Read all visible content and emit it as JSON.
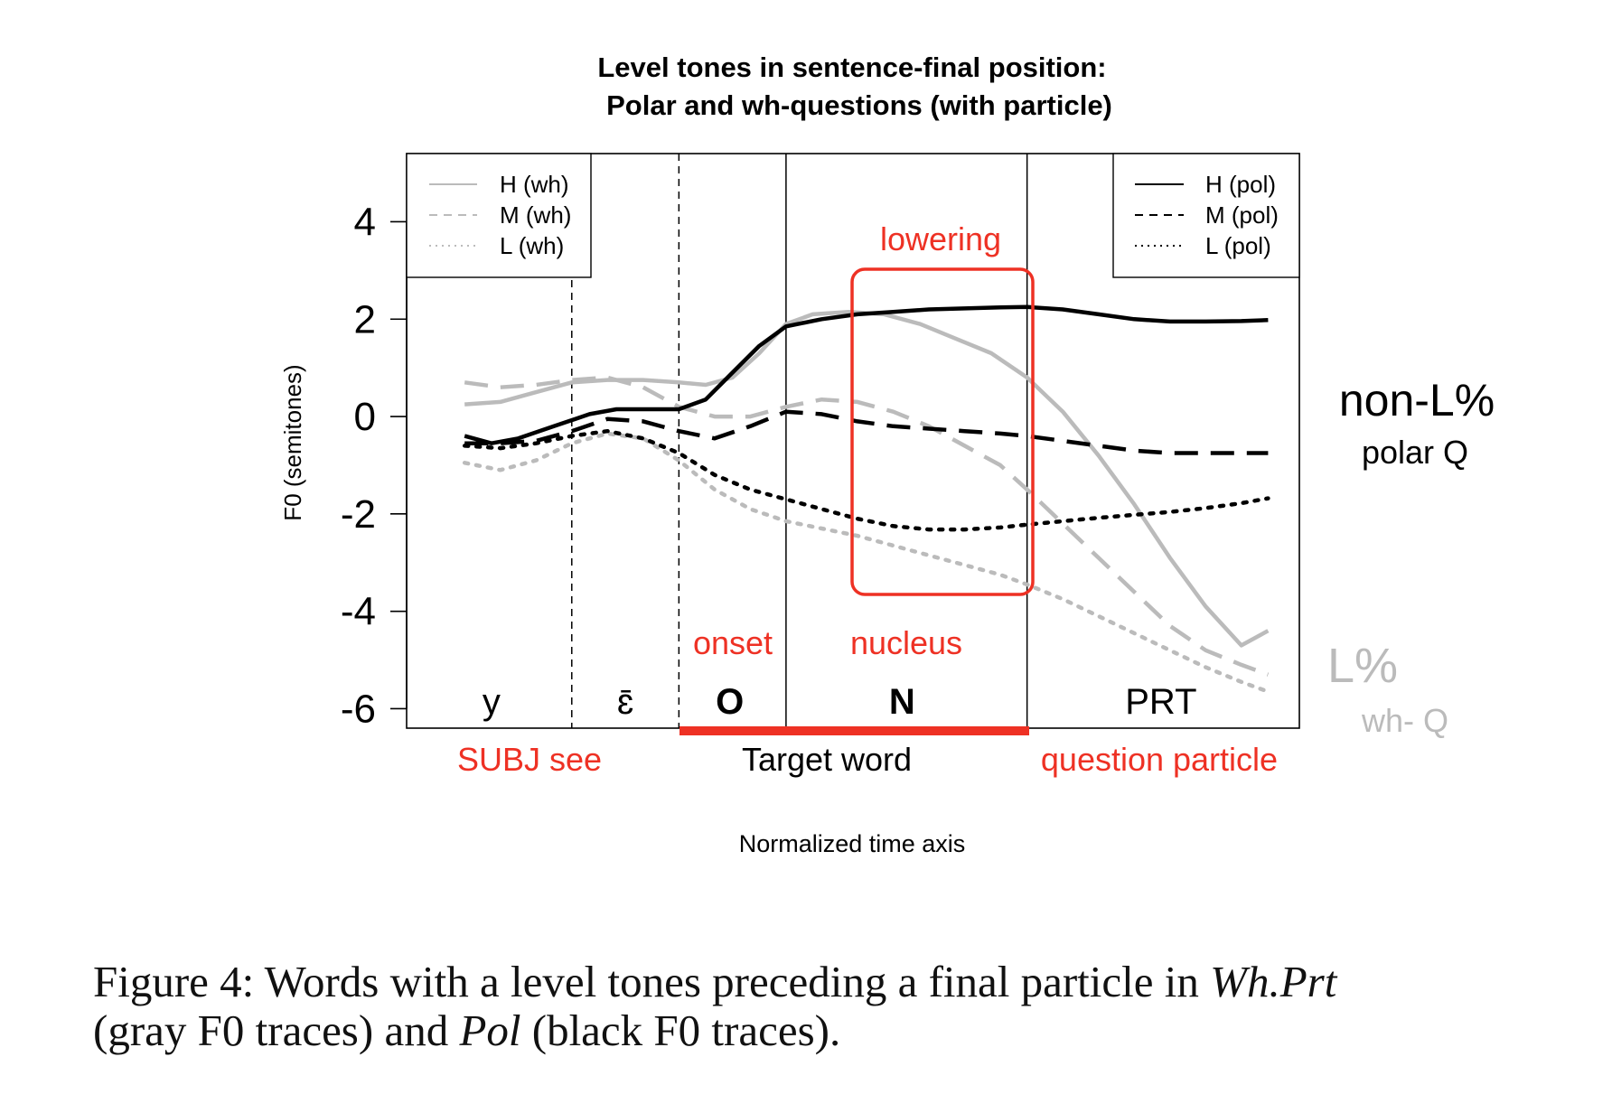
{
  "chart_data": {
    "type": "line",
    "title": "Level tones in sentence-final position:",
    "subtitle": "Polar and wh-questions (with particle)",
    "xlabel": "Normalized time axis",
    "ylabel": "F0 (semitones)",
    "xlim": [
      0,
      1
    ],
    "ylim": [
      -6.4,
      5.4
    ],
    "yticks": [
      4,
      2,
      0,
      -2,
      -4,
      -6
    ],
    "grid": false,
    "legend": [
      {
        "position": "top-left",
        "entries": [
          {
            "label": "H (wh)",
            "color": "#bbbbbb",
            "dash": "solid"
          },
          {
            "label": "M (wh)",
            "color": "#bbbbbb",
            "dash": "dashed"
          },
          {
            "label": "L (wh)",
            "color": "#bbbbbb",
            "dash": "dotted"
          }
        ]
      },
      {
        "position": "top-right",
        "entries": [
          {
            "label": "H (pol)",
            "color": "#000000",
            "dash": "solid"
          },
          {
            "label": "M (pol)",
            "color": "#000000",
            "dash": "dashed"
          },
          {
            "label": "L (pol)",
            "color": "#000000",
            "dash": "dotted"
          }
        ]
      }
    ],
    "segment_boundaries": [
      {
        "x": 0.185,
        "style": "dashed"
      },
      {
        "x": 0.305,
        "style": "dashed"
      },
      {
        "x": 0.425,
        "style": "solid"
      },
      {
        "x": 0.695,
        "style": "solid"
      }
    ],
    "segment_labels": [
      {
        "text": "y",
        "x": 0.095,
        "weight": "normal"
      },
      {
        "text": "ɛ̄",
        "x": 0.245,
        "weight": "normal"
      },
      {
        "text": "O",
        "x": 0.362,
        "weight": "bold"
      },
      {
        "text": "N",
        "x": 0.555,
        "weight": "bold"
      },
      {
        "text": "PRT",
        "x": 0.845,
        "weight": "normal"
      }
    ],
    "series": [
      {
        "name": "H (wh)",
        "color": "#bbbbbb",
        "dash": "solid",
        "x": [
          0.065,
          0.105,
          0.145,
          0.185,
          0.225,
          0.265,
          0.305,
          0.335,
          0.365,
          0.395,
          0.425,
          0.455,
          0.495,
          0.535,
          0.575,
          0.615,
          0.655,
          0.695,
          0.735,
          0.775,
          0.815,
          0.855,
          0.895,
          0.935,
          0.965
        ],
        "y": [
          0.25,
          0.3,
          0.5,
          0.7,
          0.75,
          0.75,
          0.7,
          0.65,
          0.8,
          1.3,
          1.9,
          2.1,
          2.15,
          2.1,
          1.9,
          1.6,
          1.3,
          0.8,
          0.1,
          -0.8,
          -1.8,
          -2.9,
          -3.9,
          -4.7,
          -4.4
        ],
        "y_note": "ignore"
      },
      {
        "name": "M (wh)",
        "color": "#bbbbbb",
        "dash": "dashed",
        "x": [
          0.065,
          0.105,
          0.145,
          0.185,
          0.225,
          0.265,
          0.305,
          0.345,
          0.385,
          0.425,
          0.465,
          0.505,
          0.545,
          0.585,
          0.625,
          0.665,
          0.695,
          0.735,
          0.775,
          0.815,
          0.855,
          0.895,
          0.935,
          0.965
        ],
        "y": [
          0.7,
          0.6,
          0.65,
          0.75,
          0.8,
          0.6,
          0.2,
          0.0,
          0.0,
          0.2,
          0.35,
          0.3,
          0.1,
          -0.2,
          -0.6,
          -1.0,
          -1.5,
          -2.2,
          -2.9,
          -3.6,
          -4.3,
          -4.8,
          -5.1,
          -5.3
        ]
      },
      {
        "name": "L (wh)",
        "color": "#bbbbbb",
        "dash": "dotted",
        "x": [
          0.065,
          0.105,
          0.145,
          0.185,
          0.225,
          0.265,
          0.305,
          0.345,
          0.385,
          0.425,
          0.465,
          0.505,
          0.545,
          0.585,
          0.625,
          0.665,
          0.695,
          0.735,
          0.775,
          0.815,
          0.855,
          0.895,
          0.935,
          0.965
        ],
        "y": [
          -0.95,
          -1.1,
          -0.9,
          -0.55,
          -0.35,
          -0.45,
          -0.9,
          -1.5,
          -1.9,
          -2.15,
          -2.3,
          -2.45,
          -2.65,
          -2.85,
          -3.05,
          -3.25,
          -3.45,
          -3.75,
          -4.1,
          -4.45,
          -4.8,
          -5.15,
          -5.45,
          -5.65
        ]
      },
      {
        "name": "H (pol)",
        "color": "#000000",
        "dash": "solid",
        "x": [
          0.065,
          0.095,
          0.125,
          0.165,
          0.205,
          0.235,
          0.265,
          0.305,
          0.335,
          0.365,
          0.395,
          0.425,
          0.465,
          0.505,
          0.545,
          0.585,
          0.625,
          0.665,
          0.695,
          0.735,
          0.775,
          0.815,
          0.855,
          0.895,
          0.935,
          0.965
        ],
        "y": [
          -0.4,
          -0.55,
          -0.45,
          -0.2,
          0.05,
          0.15,
          0.15,
          0.15,
          0.35,
          0.9,
          1.45,
          1.85,
          2.0,
          2.1,
          2.15,
          2.2,
          2.22,
          2.24,
          2.25,
          2.2,
          2.1,
          2.0,
          1.95,
          1.95,
          1.96,
          1.98
        ]
      },
      {
        "name": "M (pol)",
        "color": "#000000",
        "dash": "dashed",
        "x": [
          0.065,
          0.105,
          0.145,
          0.185,
          0.225,
          0.265,
          0.305,
          0.345,
          0.385,
          0.425,
          0.465,
          0.505,
          0.545,
          0.585,
          0.625,
          0.665,
          0.695,
          0.735,
          0.775,
          0.815,
          0.855,
          0.895,
          0.935,
          0.965
        ],
        "y": [
          -0.55,
          -0.55,
          -0.5,
          -0.3,
          -0.05,
          -0.1,
          -0.3,
          -0.45,
          -0.2,
          0.1,
          0.05,
          -0.1,
          -0.2,
          -0.25,
          -0.3,
          -0.35,
          -0.4,
          -0.5,
          -0.6,
          -0.7,
          -0.75,
          -0.75,
          -0.75,
          -0.75
        ]
      },
      {
        "name": "L (pol)",
        "color": "#000000",
        "dash": "dotted",
        "x": [
          0.065,
          0.105,
          0.145,
          0.185,
          0.225,
          0.265,
          0.305,
          0.345,
          0.385,
          0.425,
          0.465,
          0.505,
          0.545,
          0.585,
          0.625,
          0.665,
          0.695,
          0.735,
          0.775,
          0.815,
          0.855,
          0.895,
          0.935,
          0.965
        ],
        "y": [
          -0.6,
          -0.65,
          -0.55,
          -0.4,
          -0.3,
          -0.45,
          -0.75,
          -1.2,
          -1.5,
          -1.7,
          -1.9,
          -2.1,
          -2.25,
          -2.32,
          -2.32,
          -2.28,
          -2.22,
          -2.15,
          -2.08,
          -2.02,
          -1.96,
          -1.88,
          -1.78,
          -1.68
        ]
      }
    ],
    "annotations": {
      "lowering": "lowering",
      "onset": "onset",
      "nucleus": "nucleus",
      "subj_see": "SUBJ see",
      "target_word": "Target word",
      "question_particle": "question particle",
      "nonL_main": "non-L%",
      "nonL_sub": "polar Q",
      "L_main": "L%",
      "L_sub": "wh- Q"
    },
    "accent_colors": {
      "red": "#ee3124",
      "gray": "#bbbbbb",
      "black": "#000000"
    }
  },
  "caption": {
    "prefix": "Figure 4: Words with a level tones preceding a final particle in ",
    "wh": "Wh.Prt",
    "middle": "(gray F0 traces) and ",
    "pol": "Pol",
    "suffix": " (black F0 traces)."
  }
}
